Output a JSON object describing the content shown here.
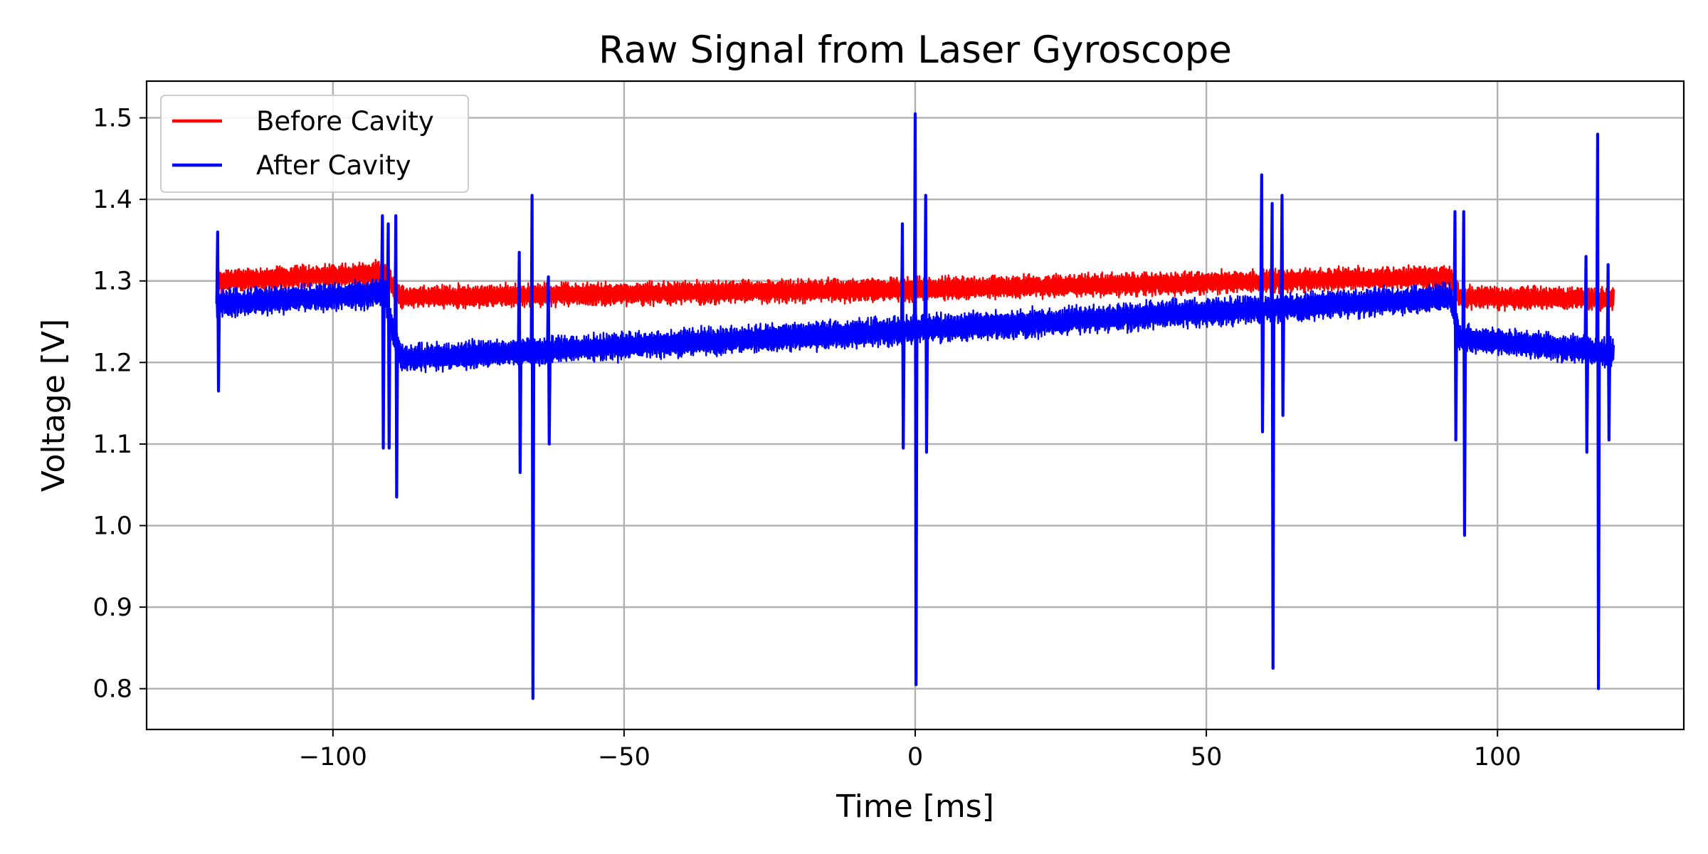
{
  "chart_data": {
    "type": "line",
    "title": "Raw Signal from Laser Gyroscope",
    "xlabel": "Time [ms]",
    "ylabel": "Voltage [V]",
    "xlim": [
      -132,
      132
    ],
    "ylim": [
      0.75,
      1.545
    ],
    "xticks": [
      -100,
      -50,
      0,
      50,
      100
    ],
    "xtick_labels": [
      "−100",
      "−50",
      "0",
      "50",
      "100"
    ],
    "yticks": [
      0.8,
      0.9,
      1.0,
      1.1,
      1.2,
      1.3,
      1.4,
      1.5
    ],
    "ytick_labels": [
      "0.8",
      "0.9",
      "1.0",
      "1.1",
      "1.2",
      "1.3",
      "1.4",
      "1.5"
    ],
    "grid": true,
    "legend_position": "top-left",
    "series": [
      {
        "name": "Before Cavity",
        "color": "#ff0000",
        "noise_band": 0.013,
        "x": [
          -120,
          -91,
          -89.5,
          -88,
          0,
          92,
          93.5,
          120
        ],
        "y": [
          1.3,
          1.31,
          1.29,
          1.28,
          1.29,
          1.305,
          1.28,
          1.278
        ]
      },
      {
        "name": "After Cavity",
        "color": "#0000ff",
        "noise_band": 0.016,
        "x": [
          -120,
          -91,
          -89.5,
          -88,
          0,
          92,
          93.5,
          120
        ],
        "y": [
          1.272,
          1.285,
          1.23,
          1.205,
          1.24,
          1.28,
          1.23,
          1.212
        ],
        "spikes": [
          {
            "x": -119.8,
            "high": 1.36,
            "low": 1.165
          },
          {
            "x": -91.5,
            "high": 1.38,
            "low": 1.095
          },
          {
            "x": -90.5,
            "high": 1.37,
            "low": 1.095
          },
          {
            "x": -89.2,
            "high": 1.38,
            "low": 1.035
          },
          {
            "x": -68.0,
            "high": 1.335,
            "low": 1.065
          },
          {
            "x": -65.8,
            "high": 1.405,
            "low": 0.788
          },
          {
            "x": -63.0,
            "high": 1.305,
            "low": 1.1
          },
          {
            "x": -2.2,
            "high": 1.37,
            "low": 1.095
          },
          {
            "x": 0,
            "high": 1.505,
            "low": 0.805
          },
          {
            "x": 1.8,
            "high": 1.405,
            "low": 1.09
          },
          {
            "x": 59.5,
            "high": 1.43,
            "low": 1.115
          },
          {
            "x": 61.3,
            "high": 1.395,
            "low": 0.825
          },
          {
            "x": 63.0,
            "high": 1.405,
            "low": 1.135
          },
          {
            "x": 92.7,
            "high": 1.385,
            "low": 1.105
          },
          {
            "x": 94.2,
            "high": 1.385,
            "low": 0.988
          },
          {
            "x": 115.2,
            "high": 1.33,
            "low": 1.09
          },
          {
            "x": 117.2,
            "high": 1.48,
            "low": 0.8
          },
          {
            "x": 119.0,
            "high": 1.32,
            "low": 1.105
          }
        ]
      }
    ]
  }
}
